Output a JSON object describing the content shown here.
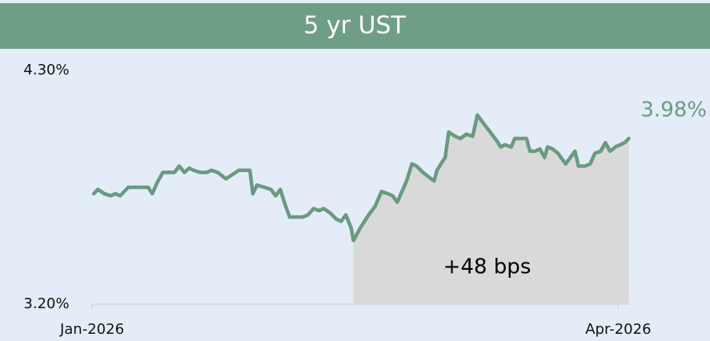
{
  "chart_data": {
    "type": "line",
    "title": "5 yr UST",
    "x": [
      0.3,
      1.0,
      2.1,
      3.2,
      4.0,
      4.8,
      6.2,
      7.5,
      8.9,
      9.6,
      10.3,
      11.1,
      12.1,
      13.0,
      14.1,
      14.9,
      15.8,
      16.6,
      17.4,
      18.5,
      19.6,
      20.4,
      21.5,
      22.9,
      24.0,
      25.1,
      26.0,
      27.0,
      27.5,
      28.2,
      29.5,
      30.6,
      31.4,
      32.2,
      33.0,
      33.8,
      34.9,
      36.0,
      36.9,
      37.9,
      38.8,
      39.6,
      40.7,
      41.8,
      42.6,
      43.4,
      44.3,
      44.7,
      45.9,
      47.3,
      48.4,
      49.5,
      50.6,
      51.4,
      52.2,
      53.0,
      53.8,
      54.7,
      55.5,
      56.6,
      57.5,
      58.5,
      59.0,
      59.9,
      60.4,
      61.0,
      62.1,
      63.0,
      64.0,
      65.1,
      65.9,
      66.7,
      68.1,
      69.2,
      69.9,
      70.6,
      71.7,
      72.3,
      73.3,
      74.3,
      74.9,
      75.8,
      76.6,
      77.4,
      77.9,
      78.8,
      79.7,
      81.0,
      81.8,
      82.6,
      83.2,
      84.3,
      85.2,
      86.0,
      87.0,
      87.8,
      88.6,
      89.5,
      90.3,
      91.1,
      91.8
    ],
    "series": [
      {
        "name": "5 yr UST",
        "color": "#6a9a80",
        "values": [
          3.72,
          3.74,
          3.72,
          3.71,
          3.72,
          3.71,
          3.75,
          3.75,
          3.75,
          3.75,
          3.72,
          3.77,
          3.82,
          3.82,
          3.82,
          3.85,
          3.82,
          3.84,
          3.83,
          3.82,
          3.82,
          3.83,
          3.82,
          3.79,
          3.81,
          3.83,
          3.83,
          3.83,
          3.72,
          3.76,
          3.75,
          3.74,
          3.71,
          3.74,
          3.67,
          3.61,
          3.61,
          3.61,
          3.62,
          3.65,
          3.64,
          3.65,
          3.63,
          3.6,
          3.59,
          3.62,
          3.56,
          3.5,
          3.56,
          3.62,
          3.66,
          3.73,
          3.72,
          3.71,
          3.68,
          3.73,
          3.78,
          3.86,
          3.85,
          3.82,
          3.8,
          3.78,
          3.83,
          3.87,
          3.89,
          4.01,
          3.99,
          3.98,
          4.0,
          3.99,
          4.09,
          4.06,
          4.01,
          3.97,
          3.94,
          3.95,
          3.94,
          3.98,
          3.98,
          3.98,
          3.92,
          3.92,
          3.93,
          3.89,
          3.94,
          3.93,
          3.91,
          3.86,
          3.89,
          3.92,
          3.85,
          3.85,
          3.86,
          3.91,
          3.92,
          3.96,
          3.92,
          3.94,
          3.95,
          3.96,
          3.98
        ]
      }
    ],
    "xlim": [
      0,
      92
    ],
    "xticks": [
      {
        "value": 0,
        "label": "Jan-2026"
      },
      {
        "value": 90,
        "label": "Apr-2026"
      }
    ],
    "ylim": [
      3.2,
      4.3
    ],
    "yticks": [
      {
        "value": 3.2,
        "label": "3.20%"
      },
      {
        "value": 4.3,
        "label": "4.30%"
      }
    ],
    "area_color": "#d9d9d9",
    "annotations": [
      {
        "text": "3.98%"
      },
      {
        "text": "+48 bps"
      }
    ]
  }
}
